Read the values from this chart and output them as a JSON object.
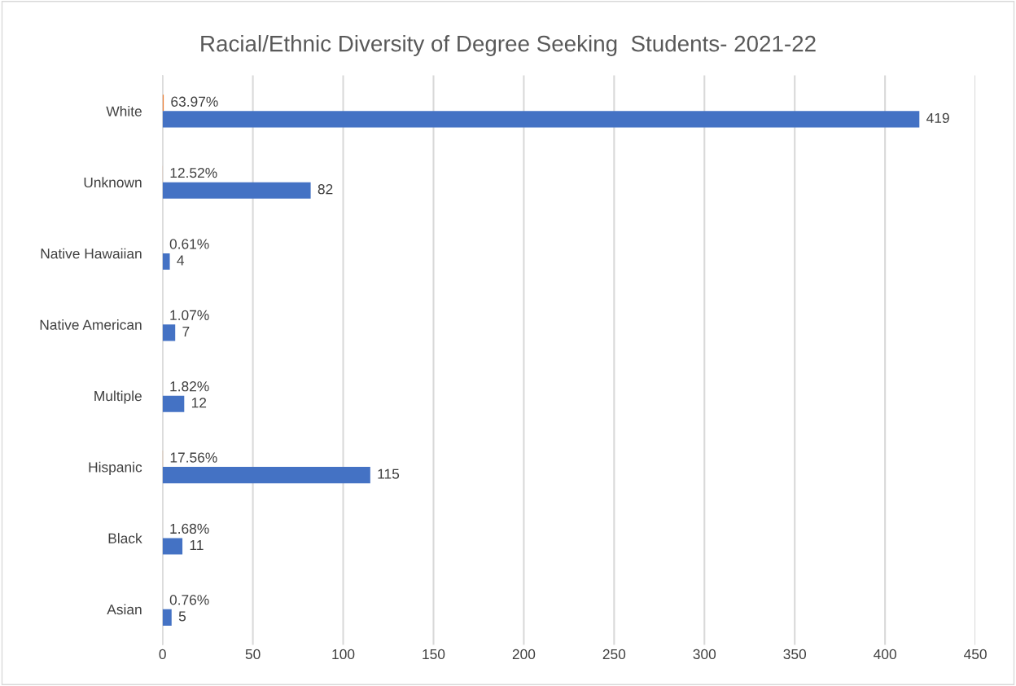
{
  "chart_data": {
    "type": "bar",
    "orientation": "horizontal",
    "title": "Racial/Ethnic Diversity of Degree Seeking  Students- 2021-22",
    "categories": [
      "White",
      "Unknown",
      "Native Hawaiian",
      "Native American",
      "Multiple",
      "Hispanic",
      "Black",
      "Asian"
    ],
    "series": [
      {
        "color": "#ed7d31",
        "values": [
          0.6397,
          0.1252,
          0.0061,
          0.0107,
          0.0182,
          0.1756,
          0.0168,
          0.0076
        ],
        "value_labels": [
          "63.97%",
          "12.52%",
          "0.61%",
          "1.07%",
          "1.82%",
          "17.56%",
          "1.68%",
          "0.76%"
        ]
      },
      {
        "color": "#4472c4",
        "values": [
          419,
          82,
          4,
          7,
          12,
          115,
          11,
          5
        ],
        "value_labels": [
          "419",
          "82",
          "4",
          "7",
          "12",
          "115",
          "11",
          "5"
        ]
      }
    ],
    "xlim": [
      0,
      450
    ],
    "xticks": [
      0,
      50,
      100,
      150,
      200,
      250,
      300,
      350,
      400,
      450
    ],
    "grid": "x"
  }
}
